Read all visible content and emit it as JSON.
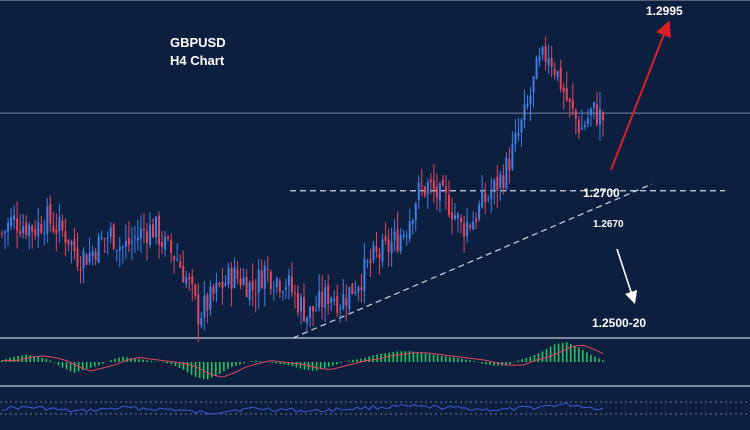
{
  "chart_data": {
    "type": "candlestick",
    "title": "GBPUSD",
    "subtitle": "H4 Chart",
    "colors": {
      "background": "#0d1f3f",
      "bull": "#3f7fe6",
      "bear": "#e0475c",
      "line": "#b9c4d6",
      "arrow_up": "#d9202a",
      "arrow_down": "#ffffff",
      "macd_hist": "#22c55e",
      "rsi_line": "#3b5bdb"
    },
    "price_path": [
      1.264,
      1.2662,
      1.2655,
      1.2648,
      1.2665,
      1.265,
      1.2635,
      1.26,
      1.2605,
      1.2625,
      1.264,
      1.2615,
      1.2628,
      1.2645,
      1.2648,
      1.2615,
      1.26,
      1.256,
      1.2505,
      1.2528,
      1.2552,
      1.257,
      1.2565,
      1.2548,
      1.258,
      1.2565,
      1.256,
      1.253,
      1.2505,
      1.2522,
      1.2542,
      1.2528,
      1.2548,
      1.2572,
      1.2598,
      1.261,
      1.2628,
      1.265,
      1.2705,
      1.2718,
      1.27,
      1.2688,
      1.265,
      1.266,
      1.269,
      1.2712,
      1.274,
      1.2788,
      1.2842,
      1.2912,
      1.294,
      1.2895,
      1.2845,
      1.2812,
      1.2842,
      1.283
    ],
    "price_range": [
      1.248,
      1.3
    ],
    "key_levels": [
      {
        "label": "1.2995",
        "price": 1.2995
      },
      {
        "label": "1.2700",
        "price": 1.27
      },
      {
        "label": "1.2670",
        "price": 1.267
      },
      {
        "label": "1.2500-20",
        "price": 1.251
      }
    ],
    "resistance_line": 1.271,
    "current_price_line": 1.2838,
    "macd_hist": [
      0.1,
      0.3,
      0.4,
      0.3,
      0.1,
      -0.3,
      -0.6,
      -0.4,
      -0.2,
      0.1,
      0.3,
      0.2,
      0.1,
      0.0,
      -0.1,
      -0.4,
      -0.8,
      -1.0,
      -0.7,
      -0.3,
      -0.1,
      0.1,
      0.0,
      -0.1,
      -0.2,
      -0.4,
      -0.5,
      -0.3,
      -0.1,
      0.1,
      0.2,
      0.4,
      0.5,
      0.6,
      0.6,
      0.5,
      0.4,
      0.3,
      0.2,
      0.1,
      -0.1,
      -0.2,
      -0.2,
      0.1,
      0.3,
      0.6,
      1.0,
      1.1,
      0.8,
      0.4,
      0.1
    ]
  }
}
